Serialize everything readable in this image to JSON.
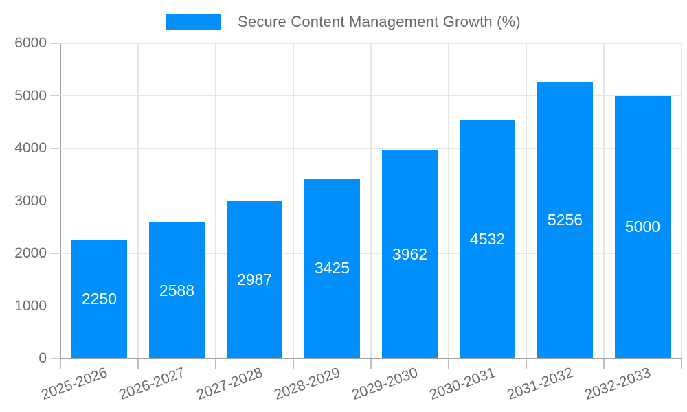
{
  "colors": {
    "accent": "#0190fb",
    "grid": "#e5e5e5",
    "axis_line": "#a3a3a3",
    "axis_text": "#6a6a6a",
    "value_label": "#ffffff",
    "background": "#ffffff"
  },
  "chart_data": {
    "type": "bar",
    "title": "Secure Content Management Growth (%)",
    "series_name": "Secure Content Management Growth (%)",
    "categories": [
      "2025-2026",
      "2026-2027",
      "2027-2028",
      "2028-2029",
      "2029-2030",
      "2030-2031",
      "2031-2032",
      "2032-2033"
    ],
    "values": [
      2250,
      2588,
      2987,
      3425,
      3962,
      4532,
      5256,
      5000
    ],
    "value_labels": [
      "2250",
      "2588",
      "2987",
      "3425",
      "3962",
      "4532",
      "5256",
      "5000"
    ],
    "xlabel": "",
    "ylabel": "",
    "ylim": [
      0,
      6000
    ],
    "yticks": [
      0,
      1000,
      2000,
      3000,
      4000,
      5000,
      6000
    ],
    "ytick_labels": [
      "0",
      "1000",
      "2000",
      "3000",
      "4000",
      "5000",
      "6000"
    ],
    "grid": true,
    "legend_position": "top",
    "x_label_rotation_deg": -20,
    "bar_color": "#0190fb",
    "value_label_color": "#ffffff"
  }
}
